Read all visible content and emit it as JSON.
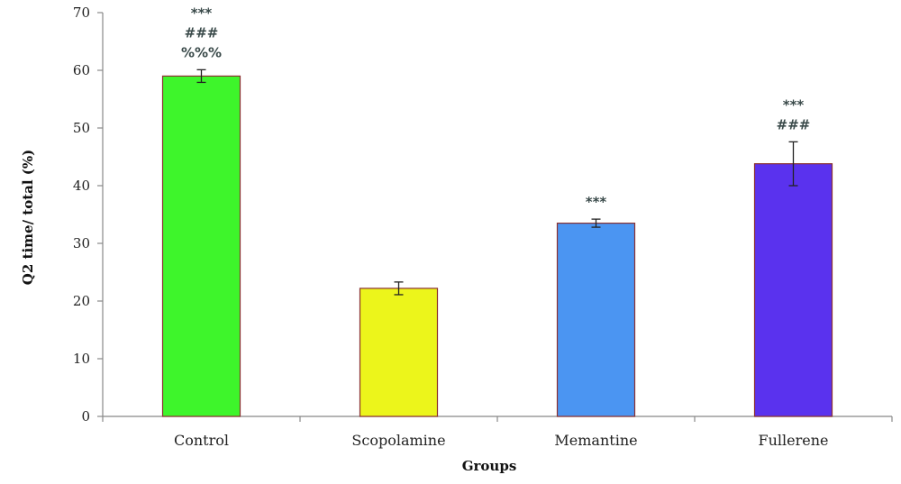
{
  "chart_data": {
    "type": "bar",
    "xlabel": "Groups",
    "ylabel": "Q2 time/ total (%)",
    "ylim": [
      0,
      70
    ],
    "yticks": [
      0,
      10,
      20,
      30,
      40,
      50,
      60,
      70
    ],
    "grid": false,
    "categories": [
      "Control",
      "Scopolamine",
      "Memantine",
      "Fullerene"
    ],
    "values": [
      59,
      22.2,
      33.5,
      43.8
    ],
    "errors": [
      1.1,
      1.1,
      0.7,
      3.8
    ],
    "colors": [
      "#3ef52b",
      "#ecf51b",
      "#4b95f2",
      "#5a32ee"
    ],
    "edge_color": "#8a3030",
    "annotations": [
      [
        "***",
        "###",
        "%%%"
      ],
      [],
      [
        "***"
      ],
      [
        "***",
        "###"
      ]
    ]
  }
}
